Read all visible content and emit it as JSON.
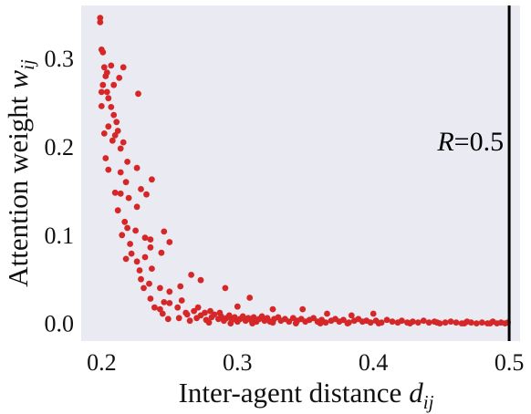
{
  "chart_data": {
    "type": "scatter",
    "title": "",
    "xlabel": "Inter-agent distance",
    "xlabel_math": "d",
    "xlabel_sub": "ij",
    "ylabel": "Attention weight",
    "ylabel_math": "w",
    "ylabel_sub": "ij",
    "xlim": [
      0.185,
      0.508
    ],
    "ylim": [
      -0.02,
      0.36
    ],
    "xticks": [
      0.2,
      0.3,
      0.4,
      0.5
    ],
    "xtick_labels": [
      "0.2",
      "0.3",
      "0.4",
      "0.5"
    ],
    "yticks": [
      0.0,
      0.1,
      0.2,
      0.3
    ],
    "ytick_labels": [
      "0.0",
      "0.1",
      "0.2",
      "0.3"
    ],
    "grid": false,
    "background": "#eaeaf2",
    "marker_color": "#d62728",
    "vline": {
      "x": 0.5,
      "label_var": "R",
      "label_rest": "=0.5",
      "color": "#000000"
    },
    "series": [
      {
        "points": [
          [
            0.199,
            0.346
          ],
          [
            0.199,
            0.341
          ],
          [
            0.2,
            0.31
          ],
          [
            0.201,
            0.307
          ],
          [
            0.203,
            0.28
          ],
          [
            0.204,
            0.284
          ],
          [
            0.207,
            0.292
          ],
          [
            0.202,
            0.29
          ],
          [
            0.201,
            0.27
          ],
          [
            0.2,
            0.262
          ],
          [
            0.204,
            0.262
          ],
          [
            0.213,
            0.278
          ],
          [
            0.216,
            0.29
          ],
          [
            0.209,
            0.27
          ],
          [
            0.205,
            0.255
          ],
          [
            0.207,
            0.245
          ],
          [
            0.2,
            0.246
          ],
          [
            0.227,
            0.26
          ],
          [
            0.209,
            0.236
          ],
          [
            0.211,
            0.228
          ],
          [
            0.205,
            0.223
          ],
          [
            0.212,
            0.218
          ],
          [
            0.21,
            0.213
          ],
          [
            0.208,
            0.207
          ],
          [
            0.202,
            0.215
          ],
          [
            0.216,
            0.205
          ],
          [
            0.214,
            0.198
          ],
          [
            0.219,
            0.183
          ],
          [
            0.203,
            0.187
          ],
          [
            0.205,
            0.174
          ],
          [
            0.214,
            0.171
          ],
          [
            0.226,
            0.176
          ],
          [
            0.237,
            0.163
          ],
          [
            0.218,
            0.16
          ],
          [
            0.229,
            0.152
          ],
          [
            0.21,
            0.148
          ],
          [
            0.214,
            0.147
          ],
          [
            0.233,
            0.146
          ],
          [
            0.22,
            0.142
          ],
          [
            0.212,
            0.128
          ],
          [
            0.217,
            0.115
          ],
          [
            0.226,
            0.132
          ],
          [
            0.219,
            0.108
          ],
          [
            0.215,
            0.1
          ],
          [
            0.225,
            0.105
          ],
          [
            0.232,
            0.097
          ],
          [
            0.236,
            0.095
          ],
          [
            0.246,
            0.104
          ],
          [
            0.25,
            0.092
          ],
          [
            0.221,
            0.09
          ],
          [
            0.236,
            0.086
          ],
          [
            0.244,
            0.08
          ],
          [
            0.222,
            0.079
          ],
          [
            0.218,
            0.073
          ],
          [
            0.232,
            0.075
          ],
          [
            0.226,
            0.07
          ],
          [
            0.228,
            0.06
          ],
          [
            0.237,
            0.062
          ],
          [
            0.229,
            0.05
          ],
          [
            0.235,
            0.045
          ],
          [
            0.231,
            0.04
          ],
          [
            0.243,
            0.04
          ],
          [
            0.25,
            0.036
          ],
          [
            0.258,
            0.042
          ],
          [
            0.266,
            0.055
          ],
          [
            0.273,
            0.049
          ],
          [
            0.291,
            0.04
          ],
          [
            0.309,
            0.029
          ],
          [
            0.236,
            0.028
          ],
          [
            0.246,
            0.024
          ],
          [
            0.25,
            0.023
          ],
          [
            0.259,
            0.026
          ],
          [
            0.239,
            0.018
          ],
          [
            0.243,
            0.016
          ],
          [
            0.256,
            0.018
          ],
          [
            0.245,
            0.011
          ],
          [
            0.262,
            0.012
          ],
          [
            0.268,
            0.014
          ],
          [
            0.249,
            0.005
          ],
          [
            0.257,
            0.006
          ],
          [
            0.263,
            0.01
          ],
          [
            0.271,
            0.018
          ],
          [
            0.276,
            0.012
          ],
          [
            0.28,
            0.014
          ],
          [
            0.287,
            0.012
          ],
          [
            0.3,
            0.019
          ],
          [
            0.326,
            0.016
          ],
          [
            0.348,
            0.016
          ],
          [
            0.366,
            0.011
          ],
          [
            0.384,
            0.009
          ],
          [
            0.4,
            0.011
          ],
          [
            0.265,
            0.003
          ],
          [
            0.27,
            0.006
          ],
          [
            0.273,
            0.009
          ],
          [
            0.277,
            0.004
          ],
          [
            0.281,
            0.007
          ],
          [
            0.283,
            0.01
          ],
          [
            0.286,
            0.005
          ],
          [
            0.288,
            0.008
          ],
          [
            0.29,
            0.003
          ],
          [
            0.292,
            0.006
          ],
          [
            0.294,
            0.009
          ],
          [
            0.296,
            0.004
          ],
          [
            0.298,
            0.007
          ],
          [
            0.3,
            0.002
          ],
          [
            0.302,
            0.005
          ],
          [
            0.304,
            0.008
          ],
          [
            0.306,
            0.003
          ],
          [
            0.308,
            0.006
          ],
          [
            0.31,
            0.004
          ],
          [
            0.312,
            0.007
          ],
          [
            0.314,
            0.002
          ],
          [
            0.316,
            0.005
          ],
          [
            0.318,
            0.008
          ],
          [
            0.32,
            0.003
          ],
          [
            0.322,
            0.006
          ],
          [
            0.324,
            0.002
          ],
          [
            0.327,
            0.005
          ],
          [
            0.33,
            0.007
          ],
          [
            0.332,
            0.003
          ],
          [
            0.335,
            0.005
          ],
          [
            0.338,
            0.002
          ],
          [
            0.341,
            0.006
          ],
          [
            0.344,
            0.003
          ],
          [
            0.347,
            0.005
          ],
          [
            0.35,
            0.002
          ],
          [
            0.353,
            0.004
          ],
          [
            0.356,
            0.006
          ],
          [
            0.359,
            0.002
          ],
          [
            0.362,
            0.004
          ],
          [
            0.365,
            0.001
          ],
          [
            0.369,
            0.003
          ],
          [
            0.372,
            0.005
          ],
          [
            0.375,
            0.002
          ],
          [
            0.378,
            0.004
          ],
          [
            0.382,
            0.001
          ],
          [
            0.386,
            0.003
          ],
          [
            0.389,
            0.005
          ],
          [
            0.392,
            0.002
          ],
          [
            0.395,
            0.003
          ],
          [
            0.398,
            0.001
          ],
          [
            0.402,
            0.003
          ],
          [
            0.406,
            0.001
          ],
          [
            0.41,
            0.004
          ],
          [
            0.414,
            0.002
          ],
          [
            0.418,
            0.001
          ],
          [
            0.421,
            0.003
          ],
          [
            0.425,
            0.001
          ],
          [
            0.429,
            0.002
          ],
          [
            0.433,
            0.001
          ],
          [
            0.437,
            0.003
          ],
          [
            0.441,
            0.001
          ],
          [
            0.445,
            0.002
          ],
          [
            0.449,
            0.0
          ],
          [
            0.453,
            0.001
          ],
          [
            0.457,
            0.002
          ],
          [
            0.461,
            0.001
          ],
          [
            0.465,
            0.0
          ],
          [
            0.469,
            0.002
          ],
          [
            0.472,
            0.001
          ],
          [
            0.476,
            0.0
          ],
          [
            0.48,
            0.001
          ],
          [
            0.484,
            0.0
          ],
          [
            0.488,
            0.002
          ],
          [
            0.491,
            0.0
          ],
          [
            0.494,
            0.001
          ],
          [
            0.497,
            0.0
          ],
          [
            0.499,
            0.001
          ],
          [
            0.279,
            0.001
          ],
          [
            0.295,
            0.0
          ],
          [
            0.311,
            0.0
          ],
          [
            0.326,
            0.001
          ],
          [
            0.343,
            0.0
          ],
          [
            0.361,
            0.0
          ],
          [
            0.381,
            0.0
          ],
          [
            0.404,
            0.0
          ],
          [
            0.427,
            0.0
          ],
          [
            0.447,
            0.001
          ],
          [
            0.467,
            0.0
          ],
          [
            0.486,
            0.0
          ]
        ]
      }
    ]
  }
}
